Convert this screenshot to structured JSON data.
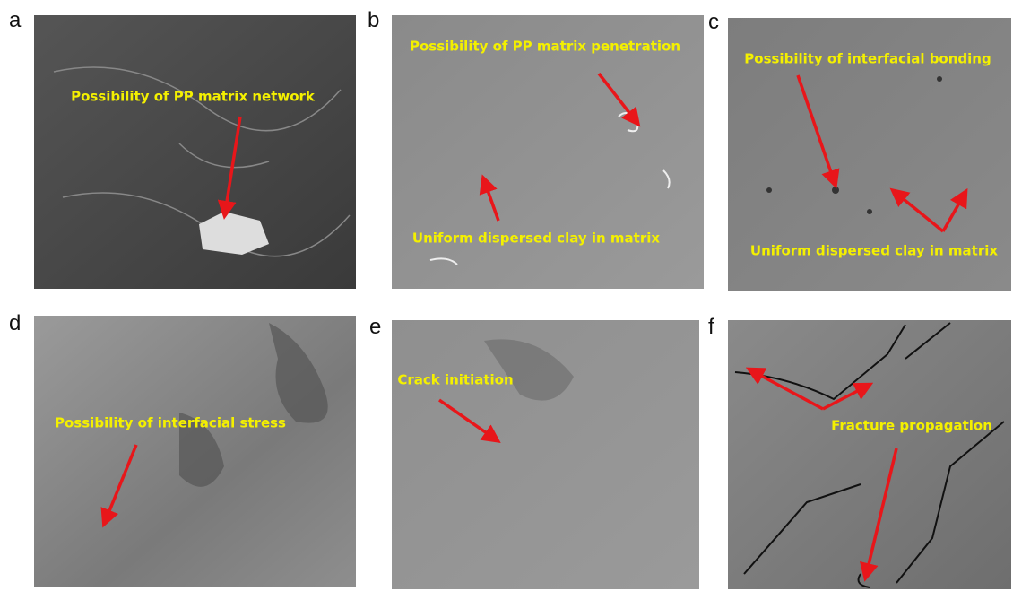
{
  "panels": [
    {
      "letter": "a",
      "annotations": [
        "Possibility of PP matrix network"
      ]
    },
    {
      "letter": "b",
      "annotations": [
        "Possibility of PP matrix penetration",
        "Uniform dispersed clay in matrix"
      ]
    },
    {
      "letter": "c",
      "annotations": [
        "Possibility of interfacial bonding",
        "Uniform dispersed clay in matrix"
      ]
    },
    {
      "letter": "d",
      "annotations": [
        "Possibility of interfacial stress"
      ]
    },
    {
      "letter": "e",
      "annotations": [
        "Crack initiation"
      ]
    },
    {
      "letter": "f",
      "annotations": [
        "Fracture propagation"
      ]
    }
  ]
}
